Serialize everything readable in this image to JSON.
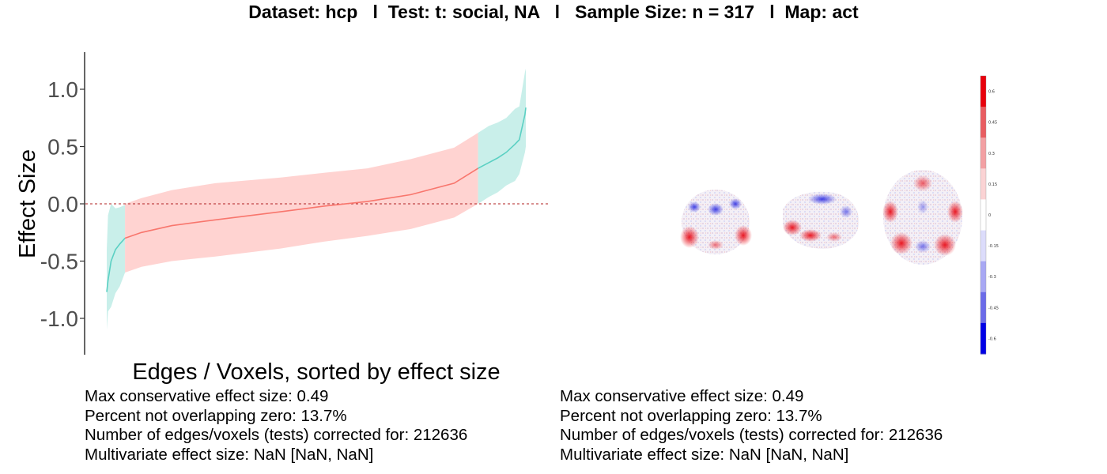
{
  "title": {
    "dataset": "Dataset: hcp",
    "test": "Test: t: social, NA",
    "sample": "Sample Size: n = 317",
    "map": "Map: act",
    "separator": "l"
  },
  "chart_data": [
    {
      "type": "area",
      "title": "",
      "xlabel": "Edges / Voxels, sorted by effect size",
      "ylabel": "Effect Size",
      "ylim": [
        -1.3,
        1.3
      ],
      "yticks": [
        -1.0,
        -0.5,
        0.0,
        0.5,
        1.0
      ],
      "ytick_labels": [
        "-1.0",
        "-0.5",
        "0.0",
        "0.5",
        "1.0"
      ],
      "x_axis": "index 0-100 (percent of sorted edges/voxels)",
      "reference_line": {
        "y": 0,
        "style": "dashed",
        "color": "#b22222"
      },
      "grid": false,
      "legend": "none",
      "series": [
        {
          "role": "estimate",
          "x": [
            0,
            0.3,
            1,
            2,
            3,
            4.2,
            4.2,
            8,
            15,
            25,
            40,
            50,
            60,
            70,
            80,
            85.5,
            85.5,
            88,
            90,
            92,
            94,
            95,
            96.3,
            96.5
          ],
          "y": [
            -0.77,
            -0.67,
            -0.5,
            -0.4,
            -0.35,
            -0.3,
            -0.3,
            -0.25,
            -0.19,
            -0.14,
            -0.07,
            -0.02,
            0.02,
            0.08,
            0.18,
            0.31,
            0.31,
            0.36,
            0.4,
            0.45,
            0.52,
            0.56,
            0.78,
            0.84
          ],
          "upper": [
            -0.4,
            -0.1,
            0.0,
            -0.04,
            -0.03,
            -0.01,
            0.0,
            0.05,
            0.12,
            0.18,
            0.23,
            0.27,
            0.31,
            0.39,
            0.49,
            0.62,
            0.62,
            0.68,
            0.71,
            0.75,
            0.83,
            0.85,
            1.15,
            1.18
          ],
          "lower": [
            -1.1,
            -0.94,
            -0.9,
            -0.78,
            -0.72,
            -0.6,
            -0.6,
            -0.55,
            -0.5,
            -0.46,
            -0.39,
            -0.33,
            -0.28,
            -0.22,
            -0.12,
            0.0,
            0.0,
            0.06,
            0.1,
            0.16,
            0.2,
            0.26,
            0.45,
            0.5
          ],
          "color_not_overlapping_zero": "#5bd0c3",
          "color_overlapping_zero": "#f8766d",
          "band_color_not_overlapping_zero": "#c9efea",
          "band_color_overlapping_zero": "#ffd3d1"
        }
      ]
    },
    {
      "type": "heatmap",
      "title": "",
      "colorbar": {
        "tick_labels": [
          "0.6",
          "0.45",
          "0.3",
          "0.15",
          "0",
          "-0.15",
          "-0.3",
          "-0.45",
          "-0.6"
        ],
        "colors": [
          "#e8000b",
          "#e95d61",
          "#f3a0a3",
          "#fbd3d4",
          "#ffffff",
          "#dcdcfb",
          "#a8a8f4",
          "#6b6be9",
          "#0000e6"
        ]
      },
      "views": [
        "coronal",
        "sagittal",
        "axial"
      ]
    }
  ],
  "stats_left": [
    "Max conservative effect size: 0.49",
    "Percent not overlapping zero: 13.7%",
    "Number of edges/voxels (tests) corrected for: 212636",
    "Multivariate effect size: NaN [NaN, NaN]"
  ],
  "stats_right": [
    "Max conservative effect size: 0.49",
    "Percent not overlapping zero: 13.7%",
    "Number of edges/voxels (tests) corrected for: 212636",
    "Multivariate effect size: NaN [NaN, NaN]"
  ]
}
